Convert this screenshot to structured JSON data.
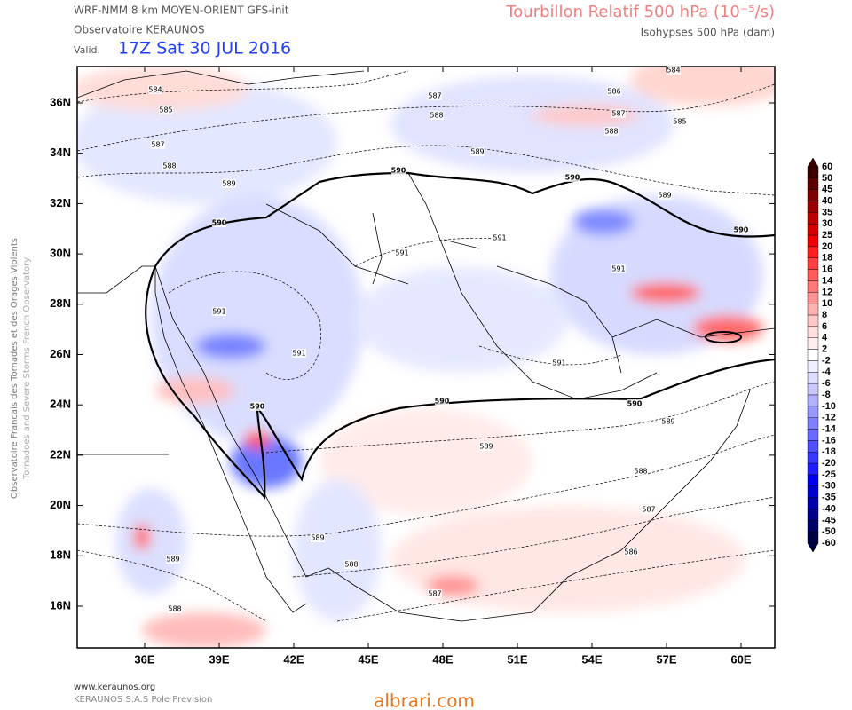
{
  "header": {
    "model": "WRF-NMM 8 km MOYEN-ORIENT   GFS-init",
    "source": "Observatoire KERAUNOS",
    "valid_prefix": "Valid.",
    "valid_time": "17Z Sat 30 JUL 2016",
    "title": "Tourbillon Relatif 500 hPa (10⁻⁵/s)",
    "subtitle": "Isohypses 500 hPa (dam)"
  },
  "side_text": [
    "Observatoire Francais des Tornades et des Orages Violents",
    "Tornadoes and Severe Storms French Observatory"
  ],
  "map": {
    "lat_labels": [
      "36N",
      "34N",
      "32N",
      "30N",
      "28N",
      "26N",
      "24N",
      "22N",
      "20N",
      "18N",
      "16N"
    ],
    "lon_labels": [
      "36E",
      "39E",
      "42E",
      "45E",
      "48E",
      "51E",
      "54E",
      "57E",
      "60E"
    ],
    "contour_labels": [
      584,
      585,
      587,
      588,
      589,
      590,
      591,
      591,
      590,
      590,
      591,
      591,
      590,
      590,
      590,
      587,
      588,
      586,
      587,
      588,
      585,
      584,
      589,
      589,
      591,
      591,
      590,
      589,
      589,
      588,
      587,
      586,
      589,
      588,
      587,
      589,
      588
    ]
  },
  "colorbar": {
    "levels": [
      60,
      50,
      45,
      40,
      35,
      30,
      25,
      20,
      18,
      16,
      14,
      12,
      10,
      8,
      6,
      4,
      2,
      -2,
      -4,
      -6,
      -8,
      -10,
      -12,
      -14,
      -16,
      -18,
      -20,
      -25,
      -30,
      -35,
      -40,
      -45,
      -50,
      -60
    ],
    "colors": [
      "#3a0000",
      "#5a0000",
      "#7a0000",
      "#990000",
      "#b80000",
      "#d40000",
      "#ee0000",
      "#ff2020",
      "#ff4040",
      "#ff5c5c",
      "#ff7878",
      "#ff9494",
      "#ffb0b0",
      "#ffc8c8",
      "#ffdede",
      "#ffeeee",
      "#ffffff",
      "#eeeeff",
      "#dcdcff",
      "#c8c8ff",
      "#b0b0ff",
      "#9898ff",
      "#8080ff",
      "#6a6aff",
      "#5050ff",
      "#3838ff",
      "#2020ff",
      "#0000ee",
      "#0000cc",
      "#0000aa",
      "#000088",
      "#000066",
      "#000044"
    ]
  },
  "footer": {
    "site": "www.keraunos.org",
    "company": "KERAUNOS S.A.S Pole Prevision",
    "watermark": "albrari.com"
  }
}
